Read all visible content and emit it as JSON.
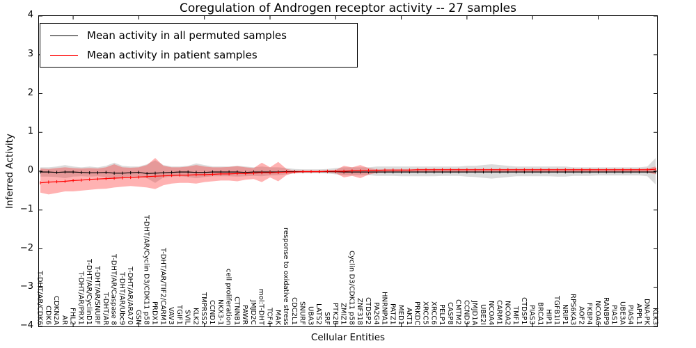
{
  "chart_data": {
    "type": "line",
    "title": "Coregulation of Androgen receptor activity -- 27 samples",
    "xlabel": "Cellular Entities",
    "ylabel": "Inferred Activity",
    "ylim": [
      -4,
      4
    ],
    "yticks": [
      4,
      3,
      2,
      1,
      0,
      -1,
      -2,
      -3,
      -4
    ],
    "grid": false,
    "legend_position": "upper left",
    "top_tick_indices": [
      4,
      12,
      20,
      28,
      36,
      44,
      52,
      60,
      68
    ],
    "categories": [
      "T-DHT/AR/CDK6",
      "CDK6",
      "CDKN2A",
      "AR",
      "FHL2",
      "T-DHT/AR/PRX1",
      "T-DHT/AR/CyclinD1",
      "T-DHT/AR/SNURF",
      "T-DHT/AR",
      "T-DHT/AR/Caspase 8",
      "T-DHT/AR/Ubc9",
      "T-DHT/AR/ARA70",
      "GSN",
      "T-DHT/AR/Cyclin D3/CDK11 p58",
      "PRDX1",
      "T-DHT/AR/TIF2/CARM1",
      "VAV3",
      "TGIF1",
      "SVIL",
      "KLK2",
      "TMPRSS2",
      "CCND1",
      "NKX3-1",
      "cell proliferation",
      "CTNNB1",
      "PAWR",
      "JMJD2C",
      "mol:T-DHT",
      "TCF4",
      "MAK",
      "response to oxidative stress",
      "CDC2L1",
      "SNURF",
      "UBA3",
      "LATS2",
      "SRF",
      "PTK2B",
      "ZMIZ1",
      "Cyclin D3/CDK11 p58",
      "ZNF318",
      "CTDSP2",
      "PA2G4",
      "HNRNPA1",
      "PATZ1",
      "MED1",
      "AKT1",
      "PRKDC",
      "XRCC5",
      "XRCC6",
      "PELP1",
      "CASP8",
      "CMTM2",
      "CCND3",
      "JMJD1A",
      "UBE2I",
      "NCOA4",
      "CARM1",
      "NCOA2",
      "TMF1",
      "CTDSP1",
      "PIAS3",
      "BRCA1",
      "HIP1",
      "TGFB1I1",
      "NRIP1",
      "RPS6KA3",
      "AOF2",
      "FKBP4",
      "NCOA6",
      "RANBP9",
      "PIAS1",
      "UBE3A",
      "PIAS4",
      "APPL1",
      "DNA-PK",
      "KLK3"
    ],
    "series": [
      {
        "name": "Mean activity in all permuted samples",
        "color": "#000000",
        "values": [
          -0.02,
          -0.02,
          -0.03,
          -0.02,
          -0.02,
          -0.03,
          -0.04,
          -0.04,
          -0.03,
          -0.05,
          -0.05,
          -0.04,
          -0.03,
          -0.06,
          -0.05,
          -0.04,
          -0.03,
          -0.02,
          -0.02,
          -0.03,
          -0.03,
          -0.02,
          -0.02,
          -0.02,
          -0.02,
          -0.03,
          -0.02,
          -0.02,
          -0.02,
          -0.02,
          -0.01,
          -0.01,
          -0.01,
          -0.01,
          -0.01,
          -0.01,
          -0.01,
          -0.02,
          -0.02,
          -0.02,
          -0.02,
          -0.02,
          -0.02,
          -0.02,
          -0.02,
          -0.02,
          -0.02,
          -0.02,
          -0.02,
          -0.02,
          -0.02,
          -0.02,
          -0.02,
          -0.02,
          -0.02,
          -0.02,
          -0.02,
          -0.02,
          -0.02,
          -0.02,
          -0.02,
          -0.02,
          -0.02,
          -0.02,
          -0.02,
          -0.02,
          -0.02,
          -0.02,
          -0.02,
          -0.02,
          -0.02,
          -0.02,
          -0.02,
          -0.02,
          -0.02,
          -0.02
        ]
      },
      {
        "name": "Mean activity in patient samples",
        "color": "#ff0000",
        "values": [
          -0.3,
          -0.28,
          -0.27,
          -0.26,
          -0.24,
          -0.23,
          -0.21,
          -0.2,
          -0.19,
          -0.18,
          -0.17,
          -0.16,
          -0.15,
          -0.14,
          -0.13,
          -0.12,
          -0.11,
          -0.1,
          -0.1,
          -0.09,
          -0.09,
          -0.08,
          -0.07,
          -0.07,
          -0.06,
          -0.06,
          -0.05,
          -0.04,
          -0.04,
          -0.03,
          -0.02,
          -0.02,
          -0.01,
          -0.01,
          -0.01,
          0.0,
          0.0,
          0.0,
          0.01,
          0.01,
          0.02,
          0.02,
          0.03,
          0.03,
          0.03,
          0.03,
          0.04,
          0.04,
          0.04,
          0.04,
          0.04,
          0.04,
          0.04,
          0.04,
          0.04,
          0.04,
          0.04,
          0.04,
          0.04,
          0.04,
          0.04,
          0.04,
          0.04,
          0.04,
          0.04,
          0.04,
          0.04,
          0.04,
          0.04,
          0.04,
          0.04,
          0.04,
          0.04,
          0.04,
          0.04,
          0.05
        ]
      }
    ],
    "bands": [
      {
        "name": "permuted-range",
        "color": "#999999",
        "opacity": 0.35,
        "upper": [
          0.1,
          0.1,
          0.12,
          0.16,
          0.12,
          0.1,
          0.12,
          0.1,
          0.14,
          0.22,
          0.14,
          0.12,
          0.12,
          0.18,
          0.28,
          0.16,
          0.12,
          0.12,
          0.14,
          0.2,
          0.16,
          0.12,
          0.12,
          0.12,
          0.14,
          0.12,
          0.1,
          0.12,
          0.1,
          0.1,
          0.08,
          0.06,
          0.05,
          0.05,
          0.05,
          0.06,
          0.08,
          0.1,
          0.1,
          0.1,
          0.1,
          0.12,
          0.12,
          0.12,
          0.12,
          0.12,
          0.12,
          0.12,
          0.12,
          0.12,
          0.12,
          0.12,
          0.14,
          0.14,
          0.16,
          0.18,
          0.16,
          0.14,
          0.12,
          0.12,
          0.12,
          0.12,
          0.12,
          0.12,
          0.12,
          0.1,
          0.1,
          0.1,
          0.1,
          0.1,
          0.1,
          0.1,
          0.1,
          0.1,
          0.12,
          0.34
        ],
        "lower": [
          -0.14,
          -0.14,
          -0.15,
          -0.18,
          -0.14,
          -0.13,
          -0.14,
          -0.13,
          -0.15,
          -0.2,
          -0.15,
          -0.14,
          -0.14,
          -0.18,
          -0.3,
          -0.16,
          -0.14,
          -0.13,
          -0.15,
          -0.18,
          -0.15,
          -0.13,
          -0.13,
          -0.13,
          -0.14,
          -0.13,
          -0.12,
          -0.13,
          -0.11,
          -0.1,
          -0.08,
          -0.06,
          -0.05,
          -0.05,
          -0.05,
          -0.06,
          -0.08,
          -0.1,
          -0.1,
          -0.1,
          -0.1,
          -0.12,
          -0.12,
          -0.12,
          -0.13,
          -0.13,
          -0.13,
          -0.13,
          -0.13,
          -0.12,
          -0.12,
          -0.12,
          -0.14,
          -0.15,
          -0.17,
          -0.19,
          -0.17,
          -0.15,
          -0.13,
          -0.13,
          -0.13,
          -0.13,
          -0.13,
          -0.14,
          -0.14,
          -0.12,
          -0.12,
          -0.12,
          -0.11,
          -0.11,
          -0.11,
          -0.11,
          -0.11,
          -0.11,
          -0.13,
          -0.34
        ]
      },
      {
        "name": "patient-range",
        "color": "#ff0000",
        "opacity": 0.3,
        "upper": [
          0.07,
          0.06,
          0.08,
          0.1,
          0.08,
          0.07,
          0.08,
          0.07,
          0.1,
          0.18,
          0.1,
          0.09,
          0.1,
          0.16,
          0.34,
          0.14,
          0.1,
          0.1,
          0.12,
          0.16,
          0.12,
          0.1,
          0.1,
          0.11,
          0.13,
          0.1,
          0.08,
          0.22,
          0.1,
          0.24,
          0.06,
          0.02,
          0.02,
          0.02,
          0.02,
          0.02,
          0.03,
          0.14,
          0.1,
          0.16,
          0.08,
          0.05,
          0.05,
          0.05,
          0.05,
          0.05,
          0.06,
          0.06,
          0.06,
          0.06,
          0.06,
          0.06,
          0.06,
          0.06,
          0.06,
          0.06,
          0.06,
          0.06,
          0.06,
          0.06,
          0.06,
          0.06,
          0.06,
          0.06,
          0.06,
          0.06,
          0.06,
          0.06,
          0.06,
          0.06,
          0.06,
          0.06,
          0.06,
          0.06,
          0.07,
          0.12
        ],
        "lower": [
          -0.55,
          -0.6,
          -0.56,
          -0.52,
          -0.52,
          -0.5,
          -0.48,
          -0.46,
          -0.45,
          -0.42,
          -0.4,
          -0.38,
          -0.4,
          -0.42,
          -0.46,
          -0.36,
          -0.32,
          -0.3,
          -0.3,
          -0.32,
          -0.28,
          -0.26,
          -0.24,
          -0.24,
          -0.26,
          -0.22,
          -0.2,
          -0.28,
          -0.16,
          -0.26,
          -0.1,
          -0.04,
          -0.03,
          -0.03,
          -0.03,
          -0.03,
          -0.05,
          -0.16,
          -0.12,
          -0.18,
          -0.09,
          -0.04,
          -0.03,
          -0.02,
          -0.02,
          -0.02,
          -0.02,
          -0.02,
          -0.02,
          -0.02,
          -0.02,
          -0.02,
          -0.02,
          -0.02,
          -0.02,
          -0.02,
          -0.02,
          -0.02,
          -0.02,
          -0.02,
          -0.02,
          -0.02,
          -0.02,
          -0.02,
          -0.02,
          -0.02,
          -0.02,
          -0.02,
          -0.02,
          -0.02,
          -0.02,
          -0.02,
          -0.02,
          -0.02,
          -0.03,
          -0.08
        ]
      }
    ]
  },
  "legend": {
    "items": [
      {
        "label": "Mean activity in all permuted samples",
        "color": "#000000"
      },
      {
        "label": "Mean activity in patient samples",
        "color": "#ff0000"
      }
    ]
  }
}
